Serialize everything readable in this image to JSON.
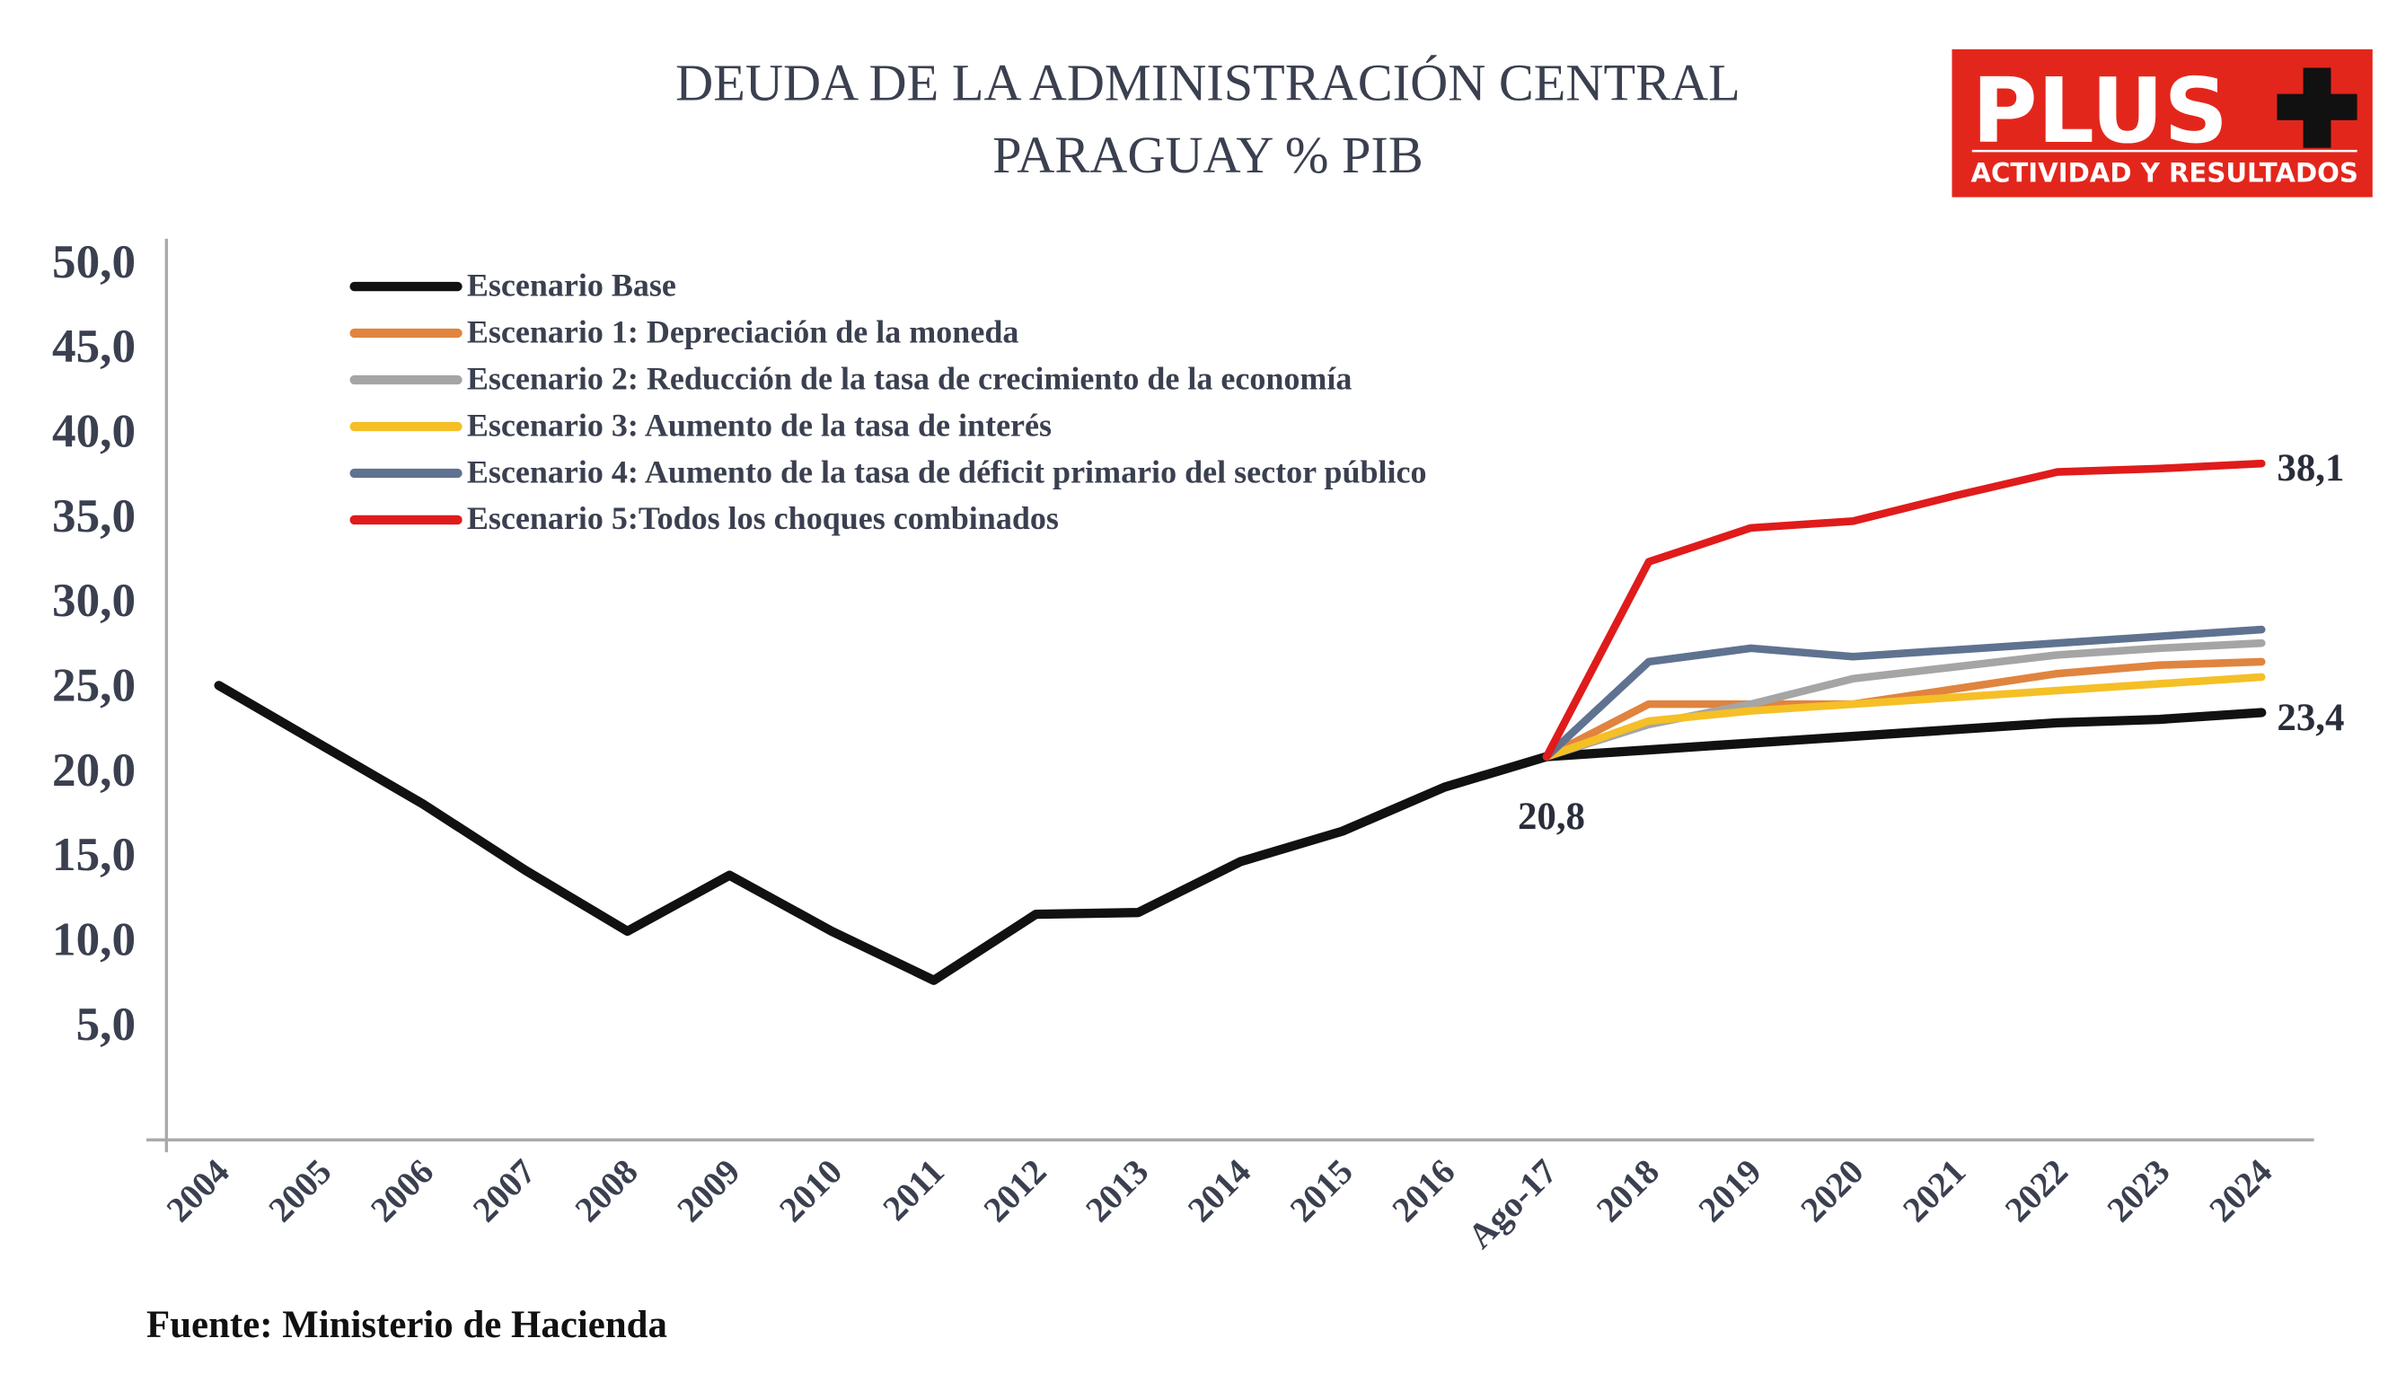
{
  "chart_data": {
    "type": "line",
    "title": "DEUDA DE LA ADMINISTRACIÓN CENTRAL",
    "subtitle": "PARAGUAY % PIB",
    "source": "Fuente: Ministerio de Hacienda",
    "logo": {
      "text": "PLUS+",
      "tagline": "ACTIVIDAD Y RESULTADOS",
      "color": "#e3261c"
    },
    "categories": [
      "2004",
      "2005",
      "2006",
      "2007",
      "2008",
      "2009",
      "2010",
      "2011",
      "2012",
      "2013",
      "2014",
      "2015",
      "2016",
      "Ago-17",
      "2018",
      "2019",
      "2020",
      "2021",
      "2022",
      "2023",
      "2024"
    ],
    "y_ticks": [
      "5,0",
      "10,0",
      "15,0",
      "20,0",
      "25,0",
      "30,0",
      "35,0",
      "40,0",
      "45,0",
      "50,0"
    ],
    "ylim": [
      0,
      50
    ],
    "grid": false,
    "legend_position": "top-left",
    "series": [
      {
        "name": "Escenario Base",
        "color": "#111111",
        "values": [
          25.0,
          21.5,
          18.0,
          14.1,
          10.5,
          13.8,
          10.5,
          7.6,
          11.5,
          11.6,
          14.6,
          16.4,
          19.0,
          20.8,
          21.2,
          21.6,
          22.0,
          22.4,
          22.8,
          23.0,
          23.4
        ]
      },
      {
        "name": "Escenario 1: Depreciación de la moneda",
        "color": "#e0843f",
        "values": [
          null,
          null,
          null,
          null,
          null,
          null,
          null,
          null,
          null,
          null,
          null,
          null,
          null,
          20.8,
          23.9,
          23.9,
          23.9,
          24.8,
          25.7,
          26.2,
          26.4
        ]
      },
      {
        "name": "Escenario 2: Reducción de la tasa de crecimiento de la economía",
        "color": "#a5a5a5",
        "values": [
          null,
          null,
          null,
          null,
          null,
          null,
          null,
          null,
          null,
          null,
          null,
          null,
          null,
          20.8,
          22.7,
          23.9,
          25.4,
          26.1,
          26.8,
          27.2,
          27.5
        ]
      },
      {
        "name": "Escenario 3: Aumento de la tasa de interés",
        "color": "#f5bf26",
        "values": [
          null,
          null,
          null,
          null,
          null,
          null,
          null,
          null,
          null,
          null,
          null,
          null,
          null,
          20.8,
          22.9,
          23.5,
          23.9,
          24.3,
          24.7,
          25.1,
          25.5
        ]
      },
      {
        "name": "Escenario 4: Aumento de la tasa de déficit primario del sector público",
        "color": "#5f7290",
        "values": [
          null,
          null,
          null,
          null,
          null,
          null,
          null,
          null,
          null,
          null,
          null,
          null,
          null,
          20.8,
          26.4,
          27.2,
          26.7,
          27.1,
          27.5,
          27.9,
          28.3
        ]
      },
      {
        "name": "Escenario 5:Todos los choques combinados",
        "color": "#e01b1b",
        "values": [
          null,
          null,
          null,
          null,
          null,
          null,
          null,
          null,
          null,
          null,
          null,
          null,
          null,
          20.8,
          32.3,
          34.3,
          34.7,
          36.2,
          37.6,
          37.8,
          38.1
        ]
      }
    ],
    "annotations": [
      "20,8",
      "38,1",
      "23,4"
    ]
  }
}
